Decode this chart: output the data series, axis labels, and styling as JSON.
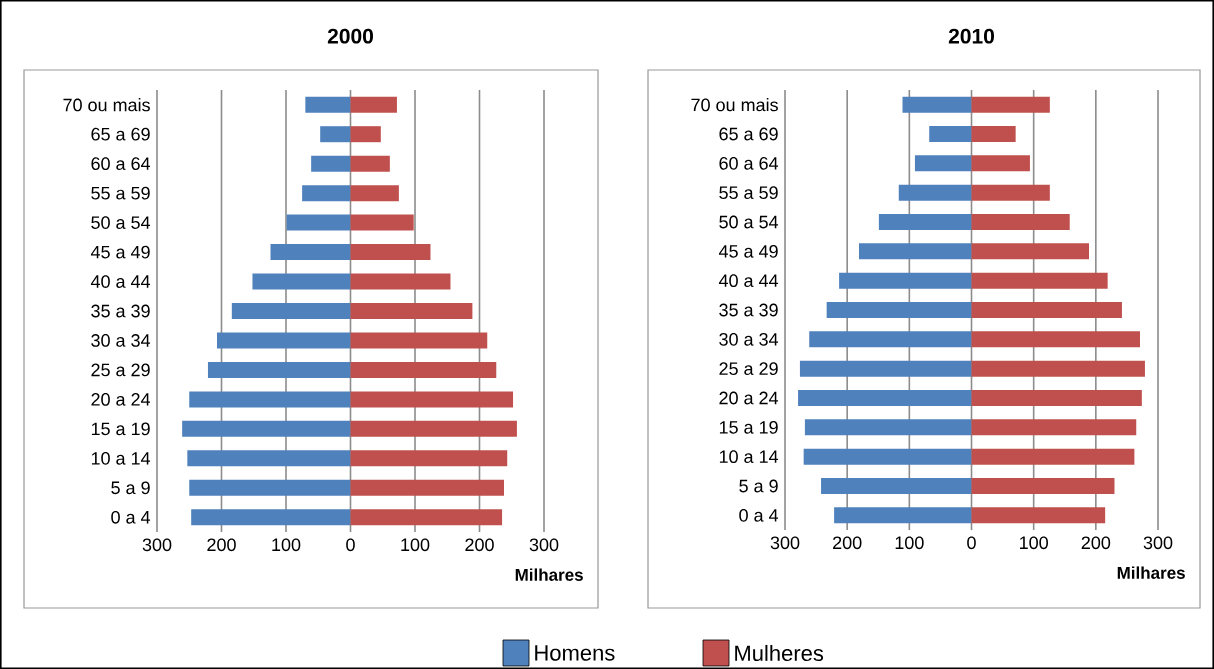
{
  "chart_data": [
    {
      "type": "bar",
      "orientation": "horizontal",
      "title": "2000",
      "xlabel": "Milhares",
      "categories": [
        "70 ou mais",
        "65 a 69",
        "60 a 64",
        "55 a 59",
        "50 a 54",
        "45 a 49",
        "40 a 44",
        "35 a 39",
        "30 a 34",
        "25 a 29",
        "20 a 24",
        "15 a 19",
        "10 a 14",
        "5 a 9",
        "0 a 4"
      ],
      "series": [
        {
          "name": "Homens",
          "color": "#4f81bd",
          "values": [
            -70,
            -47,
            -61,
            -75,
            -99,
            -124,
            -152,
            -184,
            -207,
            -221,
            -250,
            -261,
            -253,
            -250,
            -247
          ]
        },
        {
          "name": "Mulheres",
          "color": "#c0504d",
          "values": [
            72,
            47,
            61,
            75,
            98,
            124,
            155,
            189,
            212,
            226,
            252,
            258,
            243,
            238,
            235
          ]
        }
      ],
      "xlim": [
        -300,
        300
      ],
      "xticks": [
        {
          "value": -300,
          "label": "300"
        },
        {
          "value": -200,
          "label": "200"
        },
        {
          "value": -100,
          "label": "100"
        },
        0,
        100,
        200,
        300
      ],
      "grid": "x",
      "legend": "bottom",
      "stacked": true
    },
    {
      "type": "bar",
      "orientation": "horizontal",
      "title": "2010",
      "xlabel": "Milhares",
      "categories": [
        "70 ou mais",
        "65 a 69",
        "60 a 64",
        "55 a 59",
        "50 a 54",
        "45 a 49",
        "40 a 44",
        "35 a 39",
        "30 a 34",
        "25 a 29",
        "20 a 24",
        "15 a 19",
        "10 a 14",
        "5 a 9",
        "0 a 4"
      ],
      "series": [
        {
          "color": "#4f81bd",
          "values": [
            -111,
            -68,
            -91,
            -117,
            -149,
            -181,
            -213,
            -233,
            -261,
            -276,
            -279,
            -268,
            -270,
            -242,
            -221
          ]
        },
        {
          "color": "#c0504d",
          "values": [
            126,
            71,
            94,
            126,
            158,
            189,
            219,
            242,
            271,
            279,
            274,
            265,
            262,
            230,
            215
          ]
        }
      ],
      "xlim": [
        -300,
        300
      ],
      "xticks": [
        {
          "value": -300,
          "label": "300"
        },
        {
          "value": -200,
          "label": "200"
        },
        {
          "value": -100,
          "label": "100"
        },
        0,
        100,
        200,
        300
      ],
      "grid": "x",
      "stacked": true
    }
  ]
}
